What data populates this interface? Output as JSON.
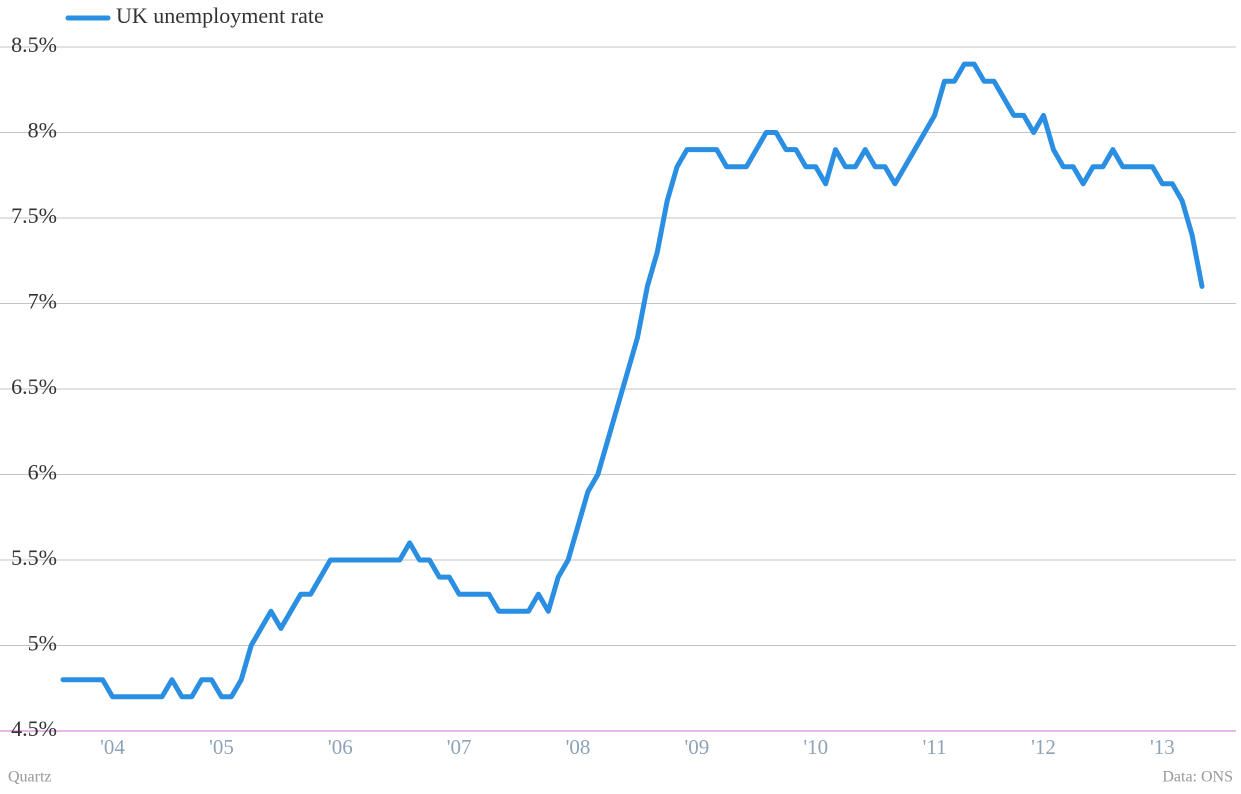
{
  "chart_data": {
    "type": "line",
    "credit": "Quartz",
    "source": "Data: ONS",
    "categories": [
      null,
      null,
      null,
      null,
      null,
      "'04",
      null,
      null,
      null,
      null,
      null,
      null,
      null,
      null,
      null,
      null,
      "'05",
      null,
      null,
      null,
      null,
      null,
      null,
      null,
      null,
      null,
      null,
      null,
      "'06",
      null,
      null,
      null,
      null,
      null,
      null,
      null,
      null,
      null,
      null,
      null,
      "'07",
      null,
      null,
      null,
      null,
      null,
      null,
      null,
      null,
      null,
      null,
      null,
      "'08",
      null,
      null,
      null,
      null,
      null,
      null,
      null,
      null,
      null,
      null,
      null,
      "'09",
      null,
      null,
      null,
      null,
      null,
      null,
      null,
      null,
      null,
      null,
      null,
      "'10",
      null,
      null,
      null,
      null,
      null,
      null,
      null,
      null,
      null,
      null,
      null,
      "'11",
      null,
      null,
      null,
      null,
      null,
      null,
      null,
      null,
      null,
      null,
      "'12",
      null,
      null,
      null,
      null,
      null,
      null,
      null,
      null,
      null,
      null,
      null,
      "'13",
      null,
      null,
      null,
      null
    ],
    "series": [
      {
        "name": "UK unemployment rate",
        "color": "#2a8fe2",
        "values": [
          4.8,
          4.8,
          4.8,
          4.8,
          4.8,
          4.7,
          4.7,
          4.7,
          4.7,
          4.7,
          4.7,
          4.8,
          4.7,
          4.7,
          4.8,
          4.8,
          4.7,
          4.7,
          4.8,
          5.0,
          5.1,
          5.2,
          5.1,
          5.2,
          5.3,
          5.3,
          5.4,
          5.5,
          5.5,
          5.5,
          5.5,
          5.5,
          5.5,
          5.5,
          5.5,
          5.6,
          5.5,
          5.5,
          5.4,
          5.4,
          5.3,
          5.3,
          5.3,
          5.3,
          5.2,
          5.2,
          5.2,
          5.2,
          5.3,
          5.2,
          5.4,
          5.5,
          5.7,
          5.9,
          6.0,
          6.2,
          6.4,
          6.6,
          6.8,
          7.1,
          7.3,
          7.6,
          7.8,
          7.9,
          7.9,
          7.9,
          7.9,
          7.8,
          7.8,
          7.8,
          7.9,
          8.0,
          8.0,
          7.9,
          7.9,
          7.8,
          7.8,
          7.7,
          7.9,
          7.8,
          7.8,
          7.9,
          7.8,
          7.8,
          7.7,
          7.8,
          7.9,
          8.0,
          8.1,
          8.3,
          8.3,
          8.4,
          8.4,
          8.3,
          8.3,
          8.2,
          8.1,
          8.1,
          8.0,
          8.1,
          7.9,
          7.8,
          7.8,
          7.7,
          7.8,
          7.8,
          7.9,
          7.8,
          7.8,
          7.8,
          7.8,
          7.7,
          7.7,
          7.6,
          7.4,
          7.1
        ]
      }
    ],
    "ylim": [
      4.5,
      8.5
    ],
    "yticks": [
      {
        "value": 4.5,
        "label": "4.5%"
      },
      {
        "value": 5,
        "label": "5%"
      },
      {
        "value": 5.5,
        "label": "5.5%"
      },
      {
        "value": 6,
        "label": "6%"
      },
      {
        "value": 6.5,
        "label": "6.5%"
      },
      {
        "value": 7,
        "label": "7%"
      },
      {
        "value": 7.5,
        "label": "7.5%"
      },
      {
        "value": 8,
        "label": "8%"
      },
      {
        "value": 8.5,
        "label": "8.5%"
      }
    ],
    "grid": true,
    "legend": "top-left"
  }
}
